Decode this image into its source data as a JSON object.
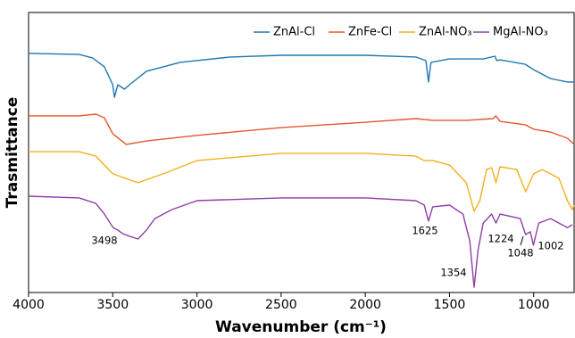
{
  "chart_data": {
    "type": "line",
    "xlabel": "Wavenumber (cm⁻¹)",
    "ylabel": "Trasmittance",
    "xlim": [
      4000,
      760
    ],
    "ylim": [
      0,
      100
    ],
    "xticks": [
      4000,
      3500,
      3000,
      2500,
      2000,
      1500,
      1000
    ],
    "legend": "top-right",
    "series": [
      {
        "name": "ZnAl-Cl",
        "color": "#1f77b4",
        "x": [
          4000,
          3700,
          3620,
          3550,
          3500,
          3490,
          3470,
          3430,
          3400,
          3300,
          3100,
          2800,
          2500,
          2000,
          1700,
          1640,
          1625,
          1610,
          1500,
          1300,
          1230,
          1220,
          1200,
          1050,
          1000,
          900,
          850,
          800,
          760
        ],
        "values": [
          85.4,
          85.0,
          83.8,
          80.6,
          74.2,
          69.7,
          74.2,
          72.6,
          74.2,
          79.0,
          82.2,
          84.1,
          84.7,
          84.7,
          84.1,
          82.8,
          75.2,
          82.2,
          83.4,
          83.4,
          84.4,
          82.8,
          83.1,
          81.5,
          79.6,
          76.4,
          75.8,
          75.2,
          75.2
        ]
      },
      {
        "name": "ZnFe-Cl",
        "color": "#e4572e",
        "x": [
          4000,
          3700,
          3600,
          3550,
          3500,
          3420,
          3300,
          3000,
          2500,
          2000,
          1700,
          1600,
          1400,
          1240,
          1225,
          1200,
          1050,
          1000,
          900,
          800,
          760
        ],
        "values": [
          63.1,
          63.1,
          63.7,
          62.4,
          56.7,
          52.9,
          54.1,
          56.1,
          58.9,
          60.8,
          62.1,
          61.5,
          61.5,
          62.1,
          63.1,
          61.1,
          59.9,
          58.3,
          57.3,
          55.1,
          52.9
        ]
      },
      {
        "name": "ZnAl-NO₃",
        "color": "#f2b01e",
        "x": [
          4000,
          3700,
          3600,
          3500,
          3350,
          3200,
          3000,
          2500,
          2000,
          1700,
          1650,
          1600,
          1500,
          1400,
          1354,
          1320,
          1280,
          1250,
          1224,
          1200,
          1100,
          1048,
          1000,
          950,
          900,
          850,
          800,
          770,
          760
        ],
        "values": [
          50.3,
          50.3,
          48.7,
          42.4,
          39.2,
          42.4,
          47.1,
          49.7,
          49.7,
          48.7,
          47.1,
          47.1,
          45.5,
          39.2,
          29.0,
          32.8,
          43.9,
          44.6,
          39.2,
          44.9,
          43.9,
          36.0,
          42.4,
          43.9,
          42.4,
          40.8,
          32.8,
          29.6,
          31.2
        ]
      },
      {
        "name": "MgAl-NO₃",
        "color": "#8e3ea6",
        "x": [
          4000,
          3700,
          3600,
          3550,
          3498,
          3470,
          3440,
          3400,
          3350,
          3300,
          3250,
          3150,
          3000,
          2500,
          2000,
          1700,
          1650,
          1625,
          1600,
          1500,
          1420,
          1380,
          1354,
          1330,
          1300,
          1250,
          1224,
          1200,
          1130,
          1080,
          1048,
          1020,
          1002,
          970,
          900,
          850,
          800,
          770
        ],
        "values": [
          34.4,
          33.8,
          31.8,
          28.0,
          23.2,
          22.3,
          21.0,
          20.1,
          19.1,
          22.3,
          26.4,
          29.6,
          32.8,
          33.8,
          33.8,
          32.8,
          31.2,
          25.5,
          30.6,
          31.2,
          28.0,
          18.5,
          1.9,
          15.3,
          24.8,
          28.0,
          24.8,
          28.0,
          27.1,
          26.4,
          20.7,
          21.7,
          16.9,
          24.8,
          26.4,
          24.8,
          23.2,
          24.2
        ]
      }
    ],
    "annotations": [
      "3498",
      "1625",
      "1354",
      "1224",
      "1048",
      "1002"
    ]
  }
}
